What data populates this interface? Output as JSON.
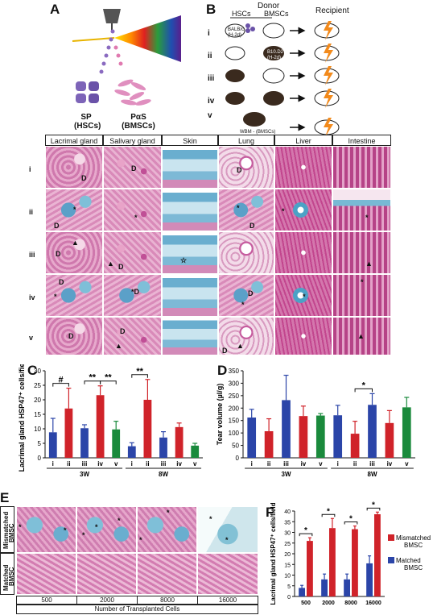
{
  "panels": {
    "A": {
      "label": "A",
      "sp": "SP",
      "sp_sub": "(HSCs)",
      "pas": "PαS",
      "pas_sub": "(BMSCs)"
    },
    "B": {
      "label": "B",
      "donor": "Donor",
      "hscs": "HSCs",
      "bmscs": "BMSCs",
      "recipient": "Recipient",
      "rows": [
        "i",
        "ii",
        "iii",
        "iv",
        "v"
      ],
      "balbc": "BALB/c",
      "balbc_h": "(H-2d)",
      "b10d2": "B10.D2",
      "b10d2_h": "(H-2d)",
      "wbm": "WBM - (BMSCs)"
    },
    "histo": {
      "columns": [
        "Lacrimal gland",
        "Salivary gland",
        "Skin",
        "Lung",
        "Liver",
        "Intestine"
      ],
      "rows": [
        "i",
        "ii",
        "iii",
        "iv",
        "v"
      ]
    },
    "C": {
      "label": "C"
    },
    "D": {
      "label": "D"
    },
    "E": {
      "label": "E",
      "row1": "Mismatched BMSC",
      "row1a": "Mismatched",
      "row1b": "BMSC",
      "row2a": "Matched",
      "row2b": "BMSC",
      "cells": [
        "500",
        "2000",
        "8000",
        "16000"
      ],
      "xlabel": "Number of Transplanted Cells"
    },
    "F": {
      "label": "F"
    }
  },
  "chart_data": [
    {
      "panel": "C",
      "type": "bar",
      "ylabel": "Lacrimal gland HSP47⁺ cells/field",
      "ylim": [
        0,
        30
      ],
      "yticks": [
        0,
        5,
        10,
        15,
        20,
        25,
        30
      ],
      "categories": [
        "i",
        "ii",
        "iii",
        "iv",
        "v",
        "i",
        "ii",
        "iii",
        "iv",
        "v"
      ],
      "groups": [
        "3W",
        "8W"
      ],
      "values": [
        8.8,
        17.0,
        10.2,
        21.6,
        9.8,
        4.0,
        20.0,
        7.0,
        10.6,
        4.2
      ],
      "errors": [
        4.8,
        7.0,
        1.2,
        3.2,
        2.8,
        1.2,
        7.0,
        2.0,
        1.4,
        0.8
      ],
      "colors": [
        "#2b45a8",
        "#d0232a",
        "#2b45a8",
        "#d0232a",
        "#1a8a3c",
        "#2b45a8",
        "#d0232a",
        "#2b45a8",
        "#d0232a",
        "#1a8a3c"
      ],
      "significance": [
        {
          "from": 0,
          "to": 1,
          "label": "#"
        },
        {
          "from": 2,
          "to": 3,
          "label": "**"
        },
        {
          "from": 3,
          "to": 4,
          "label": "**"
        },
        {
          "from": 5,
          "to": 6,
          "label": "**"
        }
      ]
    },
    {
      "panel": "D",
      "type": "bar",
      "ylabel": "Tear volume (µl/g)",
      "ylim": [
        0,
        350
      ],
      "yticks": [
        0,
        50,
        100,
        150,
        200,
        250,
        300,
        350
      ],
      "categories": [
        "i",
        "ii",
        "iii",
        "iv",
        "v",
        "i",
        "ii",
        "iii",
        "iv",
        "v"
      ],
      "groups": [
        "3W",
        "8W"
      ],
      "values": [
        162,
        107,
        232,
        168,
        170,
        171,
        97,
        213,
        140,
        203
      ],
      "errors": [
        33,
        50,
        100,
        40,
        8,
        40,
        50,
        45,
        50,
        40
      ],
      "colors": [
        "#2b45a8",
        "#d0232a",
        "#2b45a8",
        "#d0232a",
        "#1a8a3c",
        "#2b45a8",
        "#d0232a",
        "#2b45a8",
        "#d0232a",
        "#1a8a3c"
      ],
      "significance": [
        {
          "from": 6,
          "to": 7,
          "label": "*"
        }
      ]
    },
    {
      "panel": "F",
      "type": "bar",
      "ylabel": "Lacrimal gland HSP47⁺ cells/field",
      "ylim": [
        0,
        40
      ],
      "yticks": [
        0,
        5,
        10,
        15,
        20,
        25,
        30,
        35,
        40
      ],
      "categories": [
        "500",
        "2000",
        "8000",
        "16000"
      ],
      "series": [
        {
          "name": "Matched BMSC",
          "color": "#2b45a8",
          "values": [
            4,
            8,
            8,
            15.5
          ],
          "errors": [
            1.2,
            2.5,
            2.5,
            3.5
          ]
        },
        {
          "name": "Mismatched BMSC",
          "color": "#d0232a",
          "values": [
            26,
            32,
            31.5,
            38.5
          ],
          "errors": [
            1.5,
            4.5,
            1.5,
            1.0
          ]
        }
      ],
      "significance": [
        "*",
        "*",
        "*",
        "*"
      ]
    }
  ]
}
